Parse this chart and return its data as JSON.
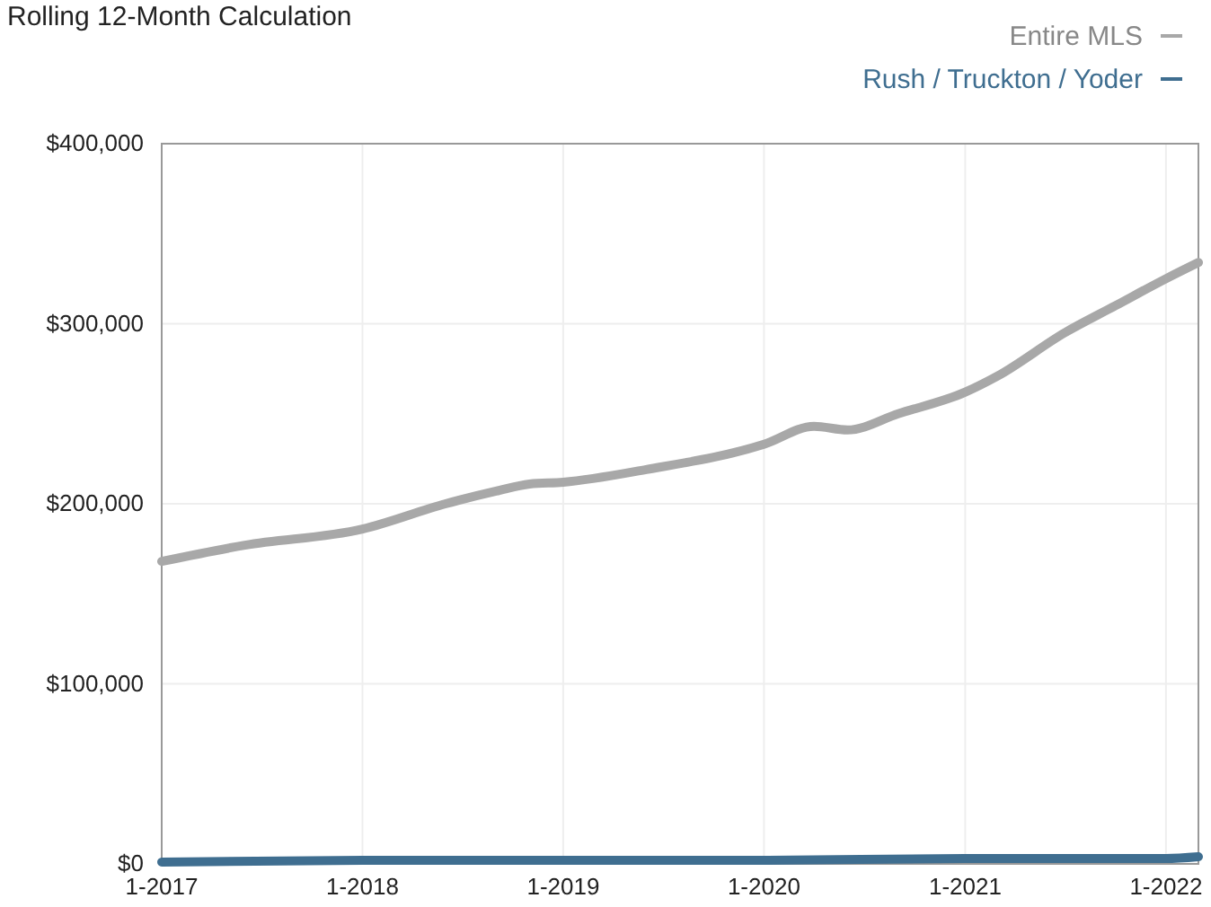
{
  "chart_data": {
    "type": "line",
    "title": "Rolling 12-Month Calculation",
    "xlim": [
      "2017-01",
      "2022-03"
    ],
    "xticks": [
      {
        "value": "2017-01",
        "label": "1-2017"
      },
      {
        "value": "2018-01",
        "label": "1-2018"
      },
      {
        "value": "2019-01",
        "label": "1-2019"
      },
      {
        "value": "2020-01",
        "label": "1-2020"
      },
      {
        "value": "2021-01",
        "label": "1-2021"
      },
      {
        "value": "2022-01",
        "label": "1-2022"
      }
    ],
    "ylim": [
      0,
      400000
    ],
    "yticks": [
      {
        "value": 0,
        "label": "$0"
      },
      {
        "value": 100000,
        "label": "$100,000"
      },
      {
        "value": 200000,
        "label": "$200,000"
      },
      {
        "value": 300000,
        "label": "$300,000"
      },
      {
        "value": 400000,
        "label": "$400,000"
      }
    ],
    "grid": true,
    "legend": "top right",
    "marker": "none",
    "line_style": "solid",
    "series": [
      {
        "name": "Entire MLS",
        "color": "#a8a8a8",
        "x": [
          "2017-01",
          "2017-06",
          "2018-01",
          "2018-06",
          "2018-09",
          "2018-11",
          "2019-01",
          "2019-06",
          "2020-01",
          "2020-04",
          "2020-06",
          "2020-09",
          "2021-01",
          "2021-03",
          "2021-07",
          "2021-10",
          "2022-01",
          "2022-03"
        ],
        "values": [
          168000,
          177000,
          186000,
          200000,
          207000,
          211000,
          212000,
          219000,
          233000,
          243000,
          241000,
          250000,
          262000,
          271000,
          295000,
          310000,
          325000,
          334000
        ]
      },
      {
        "name": "Rush / Truckton / Yoder",
        "color": "#3f6e90",
        "x": [
          "2017-01",
          "2018-01",
          "2019-01",
          "2020-01",
          "2021-01",
          "2022-01",
          "2022-03"
        ],
        "values": [
          1000,
          2000,
          2000,
          2000,
          3000,
          3000,
          4000
        ]
      }
    ]
  }
}
